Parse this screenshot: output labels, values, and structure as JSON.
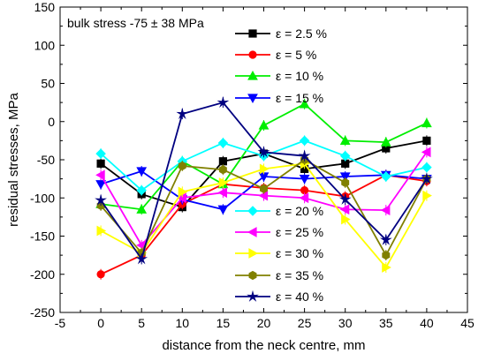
{
  "chart_data": {
    "type": "line",
    "title": "",
    "annotation": "bulk stress -75 ± 38 MPa",
    "xlabel": "distance from the neck centre, mm",
    "ylabel": "residual stresses, MPa",
    "xlim": [
      -5,
      45
    ],
    "ylim": [
      -250,
      150
    ],
    "xticks": [
      -5,
      0,
      5,
      10,
      15,
      20,
      25,
      30,
      35,
      40,
      45
    ],
    "yticks": [
      -250,
      -200,
      -150,
      -100,
      -50,
      0,
      50,
      100,
      150
    ],
    "grid": false,
    "legend_position": "top-right",
    "x": [
      0,
      5,
      10,
      15,
      20,
      25,
      30,
      35,
      40
    ],
    "series": [
      {
        "name": "ε = 2.5 %",
        "color": "#000000",
        "marker": "square",
        "values": [
          -55,
          -95,
          -112,
          -52,
          -42,
          -62,
          -55,
          -35,
          -25
        ]
      },
      {
        "name": "ε = 5 %",
        "color": "#ff0000",
        "marker": "circle",
        "values": [
          -200,
          -175,
          -108,
          -82,
          -87,
          -90,
          -98,
          -70,
          -78
        ]
      },
      {
        "name": "ε = 10 %",
        "color": "#00ee00",
        "marker": "triangle-up",
        "values": [
          -108,
          -115,
          -52,
          -82,
          -5,
          23,
          -25,
          -27,
          -2
        ]
      },
      {
        "name": "ε = 15 %",
        "color": "#0000ff",
        "marker": "triangle-down",
        "values": [
          -82,
          -65,
          -102,
          -115,
          -72,
          -75,
          -72,
          -70,
          -75
        ]
      },
      {
        "name": "ε = 20 %",
        "color": "#00ffff",
        "marker": "diamond",
        "values": [
          -42,
          -90,
          -52,
          -28,
          -45,
          -25,
          -45,
          -72,
          -60
        ]
      },
      {
        "name": "ε = 25 %",
        "color": "#ff00ff",
        "marker": "triangle-left",
        "values": [
          -70,
          -162,
          -100,
          -93,
          -97,
          -100,
          -115,
          -116,
          -40
        ]
      },
      {
        "name": "ε = 30 %",
        "color": "#ffff00",
        "marker": "triangle-right",
        "values": [
          -143,
          -172,
          -92,
          -80,
          -62,
          -55,
          -128,
          -191,
          -97
        ]
      },
      {
        "name": "ε = 35 %",
        "color": "#808000",
        "marker": "hexagon",
        "values": [
          -110,
          -172,
          -58,
          -63,
          -88,
          -50,
          -80,
          -175,
          -75
        ]
      },
      {
        "name": "ε = 40 %",
        "color": "#000080",
        "marker": "star",
        "values": [
          -103,
          -180,
          10,
          25,
          -40,
          -45,
          -102,
          -155,
          -75
        ]
      }
    ]
  }
}
